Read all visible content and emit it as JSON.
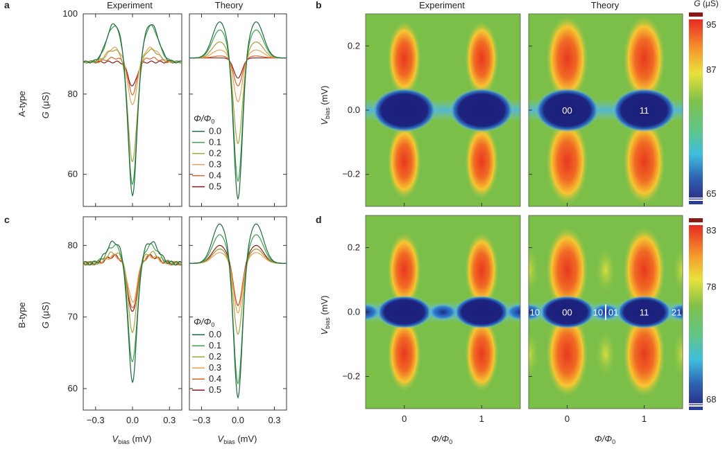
{
  "panel_letters": {
    "a": "a",
    "b": "b",
    "c": "c",
    "d": "d"
  },
  "row_labels": {
    "top": "A-type",
    "bottom": "B-type"
  },
  "column_titles": {
    "experiment": "Experiment",
    "theory": "Theory"
  },
  "y_axis_label_G": "G (μS)",
  "y_axis_label_V": "V_bias (mV)",
  "x_axis_label_V": "V_bias (mV)",
  "x_axis_label_phi": "Φ/Φ0",
  "colorbar_title": "G (μS)",
  "legend_title": "Φ/Φ0",
  "colors": {
    "0.0": "#1b6b3a",
    "0.1": "#3aa04c",
    "0.2": "#a7a13a",
    "0.3": "#e3a254",
    "0.4": "#d9642a",
    "0.5": "#8b1a1a"
  },
  "chart_data": [
    {
      "panel": "a",
      "type": "line",
      "subpanels": [
        "Experiment",
        "Theory"
      ],
      "xlabel": "V_bias (mV)",
      "ylabel": "G (μS)",
      "xlim": [
        -0.4,
        0.4
      ],
      "ylim": [
        52,
        100
      ],
      "xticks": [
        -0.3,
        0.0,
        0.3
      ],
      "yticks": [
        60,
        80,
        100
      ],
      "legend": {
        "title": "Φ/Φ0",
        "placement": "inside theory panel, lower-left"
      },
      "experiment": {
        "series": [
          {
            "name": "0.0",
            "min": 54.5,
            "peak": 97.5,
            "baseline": 88
          },
          {
            "name": "0.1",
            "min": 57,
            "peak": 97,
            "baseline": 88
          },
          {
            "name": "0.2",
            "min": 63,
            "peak": 91,
            "baseline": 88
          },
          {
            "name": "0.3",
            "min": 77,
            "peak": 91.5,
            "baseline": 88
          },
          {
            "name": "0.4",
            "min": 80,
            "peak": 89,
            "baseline": 88
          },
          {
            "name": "0.5",
            "min": 82,
            "peak": 88,
            "baseline": 88
          }
        ]
      },
      "theory": {
        "series": [
          {
            "name": "0.0",
            "min": 53.5,
            "peak": 98,
            "baseline": 89
          },
          {
            "name": "0.1",
            "min": 58,
            "peak": 96,
            "baseline": 89
          },
          {
            "name": "0.2",
            "min": 67.5,
            "peak": 93,
            "baseline": 89
          },
          {
            "name": "0.3",
            "min": 78,
            "peak": 91,
            "baseline": 89
          },
          {
            "name": "0.4",
            "min": 82,
            "peak": 89.5,
            "baseline": 89
          },
          {
            "name": "0.5",
            "min": 84,
            "peak": 89,
            "baseline": 89
          }
        ]
      }
    },
    {
      "panel": "c",
      "type": "line",
      "subpanels": [
        "Experiment",
        "Theory"
      ],
      "xlabel": "V_bias (mV)",
      "ylabel": "G (μS)",
      "xlim": [
        -0.4,
        0.4
      ],
      "ylim": [
        57,
        84
      ],
      "xticks": [
        -0.3,
        0.0,
        0.3
      ],
      "yticks": [
        60,
        70,
        80
      ],
      "legend": {
        "title": "Φ/Φ0",
        "placement": "inside theory panel, lower-left"
      },
      "experiment": {
        "series": [
          {
            "name": "0.0",
            "min": 61,
            "peak": 80.5,
            "baseline": 77.5
          },
          {
            "name": "0.1",
            "min": 63.5,
            "peak": 80,
            "baseline": 77.5
          },
          {
            "name": "0.2",
            "min": 68,
            "peak": 79,
            "baseline": 77.5
          },
          {
            "name": "0.3",
            "min": 72,
            "peak": 78.5,
            "baseline": 77.5
          },
          {
            "name": "0.4",
            "min": 71,
            "peak": 78.5,
            "baseline": 77.5
          },
          {
            "name": "0.5",
            "min": 70.5,
            "peak": 78.5,
            "baseline": 77.5
          }
        ]
      },
      "theory": {
        "series": [
          {
            "name": "0.0",
            "min": 58.5,
            "peak": 83,
            "baseline": 77.5
          },
          {
            "name": "0.1",
            "min": 60.5,
            "peak": 81.5,
            "baseline": 77.5
          },
          {
            "name": "0.2",
            "min": 67.5,
            "peak": 79.5,
            "baseline": 77.5
          },
          {
            "name": "0.3",
            "min": 70.5,
            "peak": 79,
            "baseline": 77.5
          },
          {
            "name": "0.4",
            "min": 71.5,
            "peak": 79.5,
            "baseline": 77.5
          },
          {
            "name": "0.5",
            "min": 71.5,
            "peak": 80,
            "baseline": 77.5
          }
        ]
      }
    },
    {
      "panel": "b",
      "type": "heatmap",
      "subpanels": [
        "Experiment",
        "Theory"
      ],
      "xlabel": "Φ/Φ0",
      "ylabel": "V_bias (mV)",
      "xlim": [
        -0.5,
        1.5
      ],
      "ylim": [
        -0.3,
        0.3
      ],
      "xticks": [
        0,
        1
      ],
      "yticks": [
        -0.2,
        0.0,
        0.2
      ],
      "colorbar": {
        "title": "G (μS)",
        "range": [
          65,
          95
        ],
        "ticks": [
          65,
          87,
          95
        ]
      },
      "features": {
        "peaks_V": [
          0.16,
          -0.16
        ],
        "dips_phi": [
          0,
          1
        ]
      },
      "theory_annotations": [
        "00",
        "11"
      ]
    },
    {
      "panel": "d",
      "type": "heatmap",
      "subpanels": [
        "Experiment",
        "Theory"
      ],
      "xlabel": "Φ/Φ0",
      "ylabel": "V_bias (mV)",
      "xlim": [
        -0.5,
        1.5
      ],
      "ylim": [
        -0.3,
        0.3
      ],
      "xticks": [
        0,
        1
      ],
      "yticks": [
        -0.2,
        0.0,
        0.2
      ],
      "colorbar": {
        "title": "",
        "range": [
          68,
          83
        ],
        "ticks": [
          68,
          78,
          83
        ]
      },
      "features": {
        "peaks_V": [
          0.13,
          -0.13
        ],
        "dips_phi": [
          0,
          1
        ]
      },
      "theory_annotations": [
        "10",
        "00",
        "10",
        "01",
        "11",
        "21"
      ]
    }
  ]
}
